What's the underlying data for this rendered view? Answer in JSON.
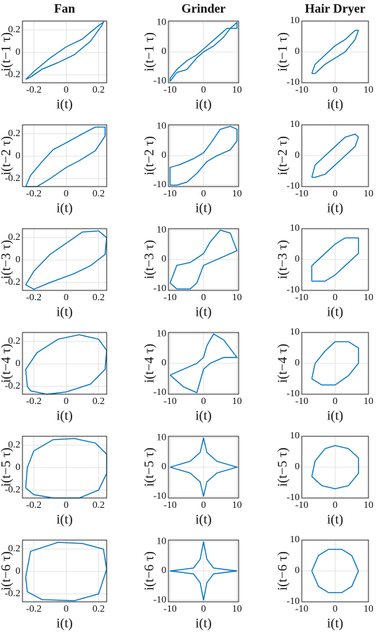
{
  "chart_data": [
    {
      "type": "line",
      "title": "Fan",
      "xlabel": "i(t)",
      "ylabel": "i(t−1 τ)",
      "xlim": [
        -0.27,
        0.25
      ],
      "ylim": [
        -0.27,
        0.28
      ],
      "xticks": [
        -0.2,
        0,
        0.2
      ],
      "yticks": [
        -0.2,
        0,
        0.2
      ],
      "grid": true,
      "color": "#0072bd",
      "x": [
        -0.25,
        -0.2,
        -0.1,
        0,
        0.1,
        0.2,
        0.23,
        0.22,
        0.15,
        0.05,
        -0.05,
        -0.15,
        -0.22,
        -0.25
      ],
      "values": [
        -0.24,
        -0.17,
        -0.05,
        0.05,
        0.12,
        0.24,
        0.27,
        0.24,
        0.1,
        -0.02,
        -0.09,
        -0.15,
        -0.22,
        -0.24
      ]
    },
    {
      "type": "line",
      "title": "Grinder",
      "xlabel": "i(t)",
      "ylabel": "i(t−1 τ)",
      "xlim": [
        -10.5,
        10.5
      ],
      "ylim": [
        -10.5,
        10.5
      ],
      "xticks": [
        -10,
        0,
        10
      ],
      "yticks": [
        -10,
        0,
        10
      ],
      "grid": true,
      "color": "#0072bd",
      "x": [
        -10,
        -8,
        -5,
        -2,
        0,
        3,
        6,
        8,
        10,
        10,
        7,
        4,
        1,
        -2,
        -5,
        -8,
        -10,
        -10
      ],
      "values": [
        -10,
        -7,
        -6,
        -2,
        0,
        2,
        5,
        8,
        10,
        8,
        8,
        5,
        2,
        -1,
        -3,
        -6,
        -9,
        -10
      ]
    },
    {
      "type": "line",
      "title": "Hair Dryer",
      "xlabel": "i(t)",
      "ylabel": "i(t−1 τ)",
      "xlim": [
        -10,
        10
      ],
      "ylim": [
        -10,
        10
      ],
      "xticks": [
        -10,
        0,
        10
      ],
      "yticks": [
        -10,
        0,
        10
      ],
      "grid": true,
      "color": "#0072bd",
      "x": [
        -7,
        -6,
        -3,
        0,
        3,
        6,
        7,
        6,
        3,
        0,
        -3,
        -6,
        -7
      ],
      "values": [
        -7,
        -4,
        -1,
        2,
        4,
        7,
        7,
        4,
        0,
        -2,
        -4,
        -7,
        -7
      ]
    },
    {
      "type": "line",
      "xlabel": "i(t)",
      "ylabel": "i(t−2 τ)",
      "xlim": [
        -0.27,
        0.25
      ],
      "ylim": [
        -0.27,
        0.28
      ],
      "xticks": [
        -0.2,
        0,
        0.2
      ],
      "yticks": [
        -0.2,
        0,
        0.2
      ],
      "grid": true,
      "color": "#0072bd",
      "x": [
        -0.25,
        -0.22,
        -0.15,
        -0.08,
        0,
        0.1,
        0.18,
        0.24,
        0.24,
        0.18,
        0.08,
        0,
        -0.1,
        -0.18,
        -0.25
      ],
      "values": [
        -0.27,
        -0.17,
        -0.05,
        0.06,
        0.12,
        0.2,
        0.26,
        0.26,
        0.18,
        0.05,
        -0.04,
        -0.1,
        -0.2,
        -0.27,
        -0.27
      ]
    },
    {
      "type": "line",
      "xlabel": "i(t)",
      "ylabel": "i(t−2 τ)",
      "xlim": [
        -10.5,
        10.5
      ],
      "ylim": [
        -10.5,
        10.5
      ],
      "xticks": [
        -10,
        0,
        10
      ],
      "yticks": [
        -10,
        0,
        10
      ],
      "grid": true,
      "color": "#0072bd",
      "x": [
        -10,
        -10,
        -7,
        -3,
        0,
        2,
        5,
        8,
        10,
        10,
        8,
        4,
        1,
        -2,
        -5,
        -8,
        -10
      ],
      "values": [
        -10,
        -4,
        -3,
        -1,
        1,
        4,
        9,
        10,
        9,
        5,
        2,
        0,
        -2,
        -6,
        -9,
        -10,
        -10
      ]
    },
    {
      "type": "line",
      "xlabel": "i(t)",
      "ylabel": "i(t−2 τ)",
      "xlim": [
        -10,
        10
      ],
      "ylim": [
        -10,
        10
      ],
      "xticks": [
        -10,
        0,
        10
      ],
      "yticks": [
        -10,
        0,
        10
      ],
      "grid": true,
      "color": "#0072bd",
      "x": [
        -7,
        -6,
        -3,
        0,
        3,
        6,
        7,
        6,
        3,
        0,
        -3,
        -6,
        -7
      ],
      "values": [
        -7,
        -3,
        0,
        3,
        6,
        7,
        6,
        3,
        0,
        -3,
        -6,
        -7,
        -7
      ]
    },
    {
      "type": "line",
      "xlabel": "i(t)",
      "ylabel": "i(t−3 τ)",
      "xlim": [
        -0.27,
        0.25
      ],
      "ylim": [
        -0.27,
        0.28
      ],
      "xticks": [
        -0.2,
        0,
        0.2
      ],
      "yticks": [
        -0.2,
        0,
        0.2
      ],
      "grid": true,
      "color": "#0072bd",
      "x": [
        -0.25,
        -0.2,
        -0.1,
        0,
        0.1,
        0.2,
        0.25,
        0.24,
        0.15,
        0.05,
        -0.1,
        -0.2,
        -0.25
      ],
      "values": [
        -0.22,
        -0.1,
        0.05,
        0.15,
        0.25,
        0.26,
        0.2,
        0.05,
        -0.05,
        -0.12,
        -0.2,
        -0.26,
        -0.22
      ]
    },
    {
      "type": "line",
      "xlabel": "i(t)",
      "ylabel": "i(t−3 τ)",
      "xlim": [
        -10.5,
        10.5
      ],
      "ylim": [
        -10.5,
        10.5
      ],
      "xticks": [
        -10,
        0,
        10
      ],
      "yticks": [
        -10,
        0,
        10
      ],
      "grid": true,
      "color": "#0072bd",
      "x": [
        -10,
        -8,
        -4,
        0,
        2,
        5,
        8,
        10,
        8,
        4,
        0,
        -2,
        -4,
        -8,
        -10
      ],
      "values": [
        -8,
        -2,
        -1,
        2,
        6,
        10,
        9,
        3,
        2,
        0,
        -2,
        -8,
        -10,
        -10,
        -8
      ]
    },
    {
      "type": "line",
      "xlabel": "i(t)",
      "ylabel": "i(t−3 τ)",
      "xlim": [
        -10,
        10
      ],
      "ylim": [
        -10,
        10
      ],
      "xticks": [
        -10,
        0,
        10
      ],
      "yticks": [
        -10,
        0,
        10
      ],
      "grid": true,
      "color": "#0072bd",
      "x": [
        -7,
        -7,
        -3,
        0,
        3,
        7,
        7,
        3,
        0,
        -3,
        -7
      ],
      "values": [
        -7,
        -2,
        2,
        5,
        7,
        7,
        2,
        -2,
        -5,
        -7,
        -7
      ]
    },
    {
      "type": "line",
      "xlabel": "i(t)",
      "ylabel": "i(t−4 τ)",
      "xlim": [
        -0.27,
        0.25
      ],
      "ylim": [
        -0.27,
        0.28
      ],
      "xticks": [
        -0.2,
        0,
        0.2
      ],
      "yticks": [
        -0.2,
        0,
        0.2
      ],
      "grid": true,
      "color": "#0072bd",
      "x": [
        -0.24,
        -0.25,
        -0.18,
        -0.05,
        0.08,
        0.2,
        0.25,
        0.24,
        0.15,
        0,
        -0.12,
        -0.22,
        -0.24
      ],
      "values": [
        -0.2,
        -0.05,
        0.1,
        0.22,
        0.26,
        0.22,
        0.12,
        -0.05,
        -0.18,
        -0.25,
        -0.27,
        -0.24,
        -0.2
      ]
    },
    {
      "type": "line",
      "xlabel": "i(t)",
      "ylabel": "i(t−4 τ)",
      "xlim": [
        -10.5,
        10.5
      ],
      "ylim": [
        -10.5,
        10.5
      ],
      "xticks": [
        -10,
        0,
        10
      ],
      "yticks": [
        -10,
        0,
        10
      ],
      "grid": true,
      "color": "#0072bd",
      "x": [
        -10,
        -6,
        -2,
        0,
        1,
        3,
        6,
        10,
        6,
        2,
        0,
        -1,
        -2,
        -6,
        -10
      ],
      "values": [
        -4,
        -2,
        0,
        2,
        6,
        10,
        8,
        2,
        2,
        0,
        -2,
        -6,
        -10,
        -8,
        -4
      ]
    },
    {
      "type": "line",
      "xlabel": "i(t)",
      "ylabel": "i(t−4 τ)",
      "xlim": [
        -10,
        10
      ],
      "ylim": [
        -10,
        10
      ],
      "xticks": [
        -10,
        0,
        10
      ],
      "yticks": [
        -10,
        0,
        10
      ],
      "grid": true,
      "color": "#0072bd",
      "x": [
        -7,
        -6,
        -3,
        0,
        4,
        7,
        7,
        4,
        0,
        -4,
        -7
      ],
      "values": [
        -5,
        0,
        4,
        7,
        7,
        5,
        0,
        -4,
        -7,
        -7,
        -5
      ]
    },
    {
      "type": "line",
      "xlabel": "i(t)",
      "ylabel": "i(t−5 τ)",
      "xlim": [
        -0.27,
        0.25
      ],
      "ylim": [
        -0.27,
        0.28
      ],
      "xticks": [
        -0.2,
        0,
        0.2
      ],
      "yticks": [
        -0.2,
        0,
        0.2
      ],
      "grid": true,
      "color": "#0072bd",
      "x": [
        -0.25,
        -0.24,
        -0.2,
        -0.08,
        0.05,
        0.18,
        0.25,
        0.25,
        0.2,
        0.08,
        -0.08,
        -0.2,
        -0.25
      ],
      "values": [
        -0.18,
        0,
        0.15,
        0.25,
        0.26,
        0.22,
        0.12,
        -0.05,
        -0.2,
        -0.27,
        -0.27,
        -0.24,
        -0.18
      ]
    },
    {
      "type": "line",
      "xlabel": "i(t)",
      "ylabel": "i(t−5 τ)",
      "xlim": [
        -10.5,
        10.5
      ],
      "ylim": [
        -10.5,
        10.5
      ],
      "xticks": [
        -10,
        0,
        10
      ],
      "yticks": [
        -10,
        0,
        10
      ],
      "grid": true,
      "color": "#0072bd",
      "x": [
        -10,
        -4,
        -1,
        0,
        1,
        4,
        10,
        4,
        1,
        0,
        -1,
        -4,
        -10
      ],
      "values": [
        0,
        2,
        5,
        10,
        5,
        2,
        0,
        -2,
        -5,
        -10,
        -5,
        -2,
        0
      ]
    },
    {
      "type": "line",
      "xlabel": "i(t)",
      "ylabel": "i(t−5 τ)",
      "xlim": [
        -10,
        10
      ],
      "ylim": [
        -10,
        10
      ],
      "xticks": [
        -10,
        0,
        10
      ],
      "yticks": [
        -10,
        0,
        10
      ],
      "grid": true,
      "color": "#0072bd",
      "x": [
        -7,
        -6,
        -3,
        0,
        4,
        7,
        7,
        4,
        0,
        -4,
        -7
      ],
      "values": [
        -3,
        2,
        6,
        7,
        6,
        3,
        -2,
        -6,
        -7,
        -6,
        -3
      ]
    },
    {
      "type": "line",
      "xlabel": "i(t)",
      "ylabel": "i(t−6 τ)",
      "xlim": [
        -0.27,
        0.25
      ],
      "ylim": [
        -0.27,
        0.28
      ],
      "xticks": [
        -0.2,
        0,
        0.2
      ],
      "yticks": [
        -0.2,
        0,
        0.2
      ],
      "grid": true,
      "color": "#0072bd",
      "x": [
        -0.25,
        -0.22,
        -0.05,
        0.1,
        0.23,
        0.25,
        0.2,
        0.05,
        -0.15,
        -0.24,
        -0.25
      ],
      "values": [
        -0.05,
        0.18,
        0.26,
        0.25,
        0.2,
        0.02,
        -0.2,
        -0.26,
        -0.25,
        -0.18,
        -0.05
      ]
    },
    {
      "type": "line",
      "xlabel": "i(t)",
      "ylabel": "i(t−6 τ)",
      "xlim": [
        -10.5,
        10.5
      ],
      "ylim": [
        -10.5,
        10.5
      ],
      "xticks": [
        -10,
        0,
        10
      ],
      "yticks": [
        -10,
        0,
        10
      ],
      "grid": true,
      "color": "#0072bd",
      "x": [
        -10,
        -3,
        -1,
        0,
        1,
        3,
        10,
        3,
        1,
        0,
        -1,
        -3,
        -10
      ],
      "values": [
        0,
        1,
        4,
        10,
        4,
        1,
        0,
        -1,
        -4,
        -10,
        -4,
        -1,
        0
      ]
    },
    {
      "type": "line",
      "xlabel": "i(t)",
      "ylabel": "i(t−6 τ)",
      "xlim": [
        -10,
        10
      ],
      "ylim": [
        -10,
        10
      ],
      "xticks": [
        -10,
        0,
        10
      ],
      "yticks": [
        -10,
        0,
        10
      ],
      "grid": true,
      "color": "#0072bd",
      "x": [
        -7,
        -5,
        -2,
        2,
        5,
        7,
        5,
        2,
        -2,
        -5,
        -7
      ],
      "values": [
        0,
        5,
        7,
        7,
        5,
        0,
        -5,
        -7,
        -7,
        -5,
        0
      ]
    }
  ]
}
